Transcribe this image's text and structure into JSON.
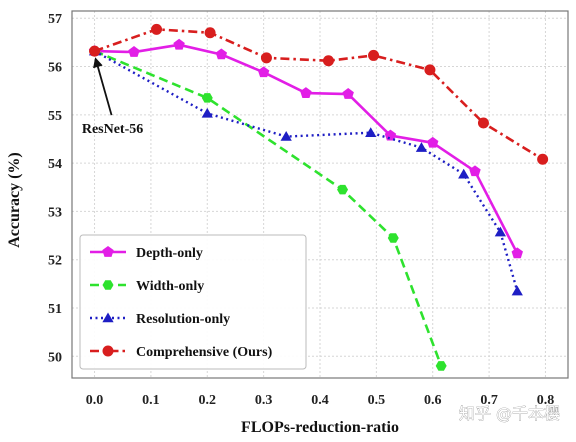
{
  "chart_data": {
    "type": "line",
    "xlabel": "FLOPs-reduction-ratio",
    "ylabel": "Accuracy (%)",
    "xlim": [
      -0.04,
      0.84
    ],
    "ylim": [
      49.55,
      57.15
    ],
    "x_ticks": [
      "0.0",
      "0.1",
      "0.2",
      "0.3",
      "0.4",
      "0.5",
      "0.6",
      "0.7",
      "0.8"
    ],
    "y_ticks": [
      "50",
      "51",
      "52",
      "53",
      "54",
      "55",
      "56",
      "57"
    ],
    "grid": true,
    "legend_position": "lower-left",
    "series": [
      {
        "name": "Depth-only",
        "color": "#e21ee6",
        "line_style": "solid",
        "marker": "pentagon",
        "x": [
          0.0,
          0.07,
          0.15,
          0.225,
          0.3,
          0.375,
          0.45,
          0.525,
          0.6,
          0.675,
          0.75
        ],
        "y": [
          56.32,
          56.3,
          56.45,
          56.25,
          55.88,
          55.45,
          55.43,
          54.57,
          54.42,
          53.83,
          52.13
        ]
      },
      {
        "name": "Width-only",
        "color": "#2ee22e",
        "line_style": "dashed",
        "marker": "hexagon",
        "x": [
          0.0,
          0.2,
          0.44,
          0.53,
          0.615
        ],
        "y": [
          56.32,
          55.35,
          53.45,
          52.45,
          49.8
        ]
      },
      {
        "name": "Resolution-only",
        "color": "#1e1ec4",
        "line_style": "dotted",
        "marker": "triangle",
        "x": [
          0.0,
          0.2,
          0.34,
          0.49,
          0.58,
          0.655,
          0.72,
          0.75
        ],
        "y": [
          56.32,
          55.03,
          54.55,
          54.63,
          54.32,
          53.77,
          52.57,
          51.35
        ]
      },
      {
        "name": "Comprehensive (Ours)",
        "color": "#d81e1e",
        "line_style": "dashdot",
        "marker": "circle",
        "x": [
          0.0,
          0.11,
          0.205,
          0.305,
          0.415,
          0.495,
          0.595,
          0.69,
          0.795
        ],
        "y": [
          56.32,
          56.77,
          56.7,
          56.18,
          56.12,
          56.23,
          55.93,
          54.83,
          54.08
        ]
      }
    ],
    "annotations": [
      {
        "text": "ResNet-56",
        "x": 0.0,
        "y": 56.32
      }
    ]
  },
  "watermark": "知乎 @千本樱"
}
